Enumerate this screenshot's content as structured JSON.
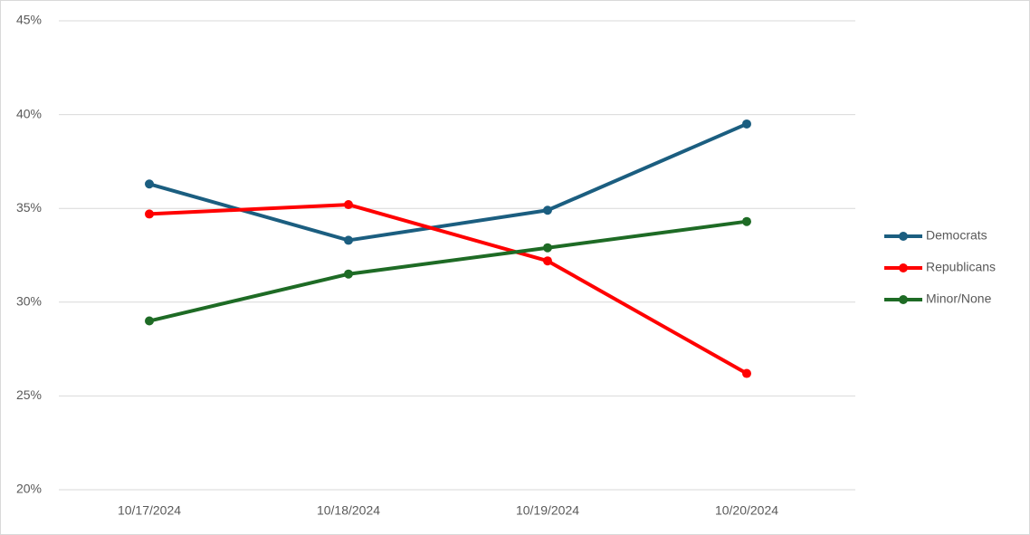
{
  "chart_data": {
    "type": "line",
    "categories": [
      "10/17/2024",
      "10/18/2024",
      "10/19/2024",
      "10/20/2024"
    ],
    "series": [
      {
        "name": "Democrats",
        "color": "#1b5e80",
        "values": [
          36.3,
          33.3,
          34.9,
          39.5
        ]
      },
      {
        "name": "Republicans",
        "color": "#ff0000",
        "values": [
          34.7,
          35.2,
          32.2,
          26.2
        ]
      },
      {
        "name": "Minor/None",
        "color": "#1e6b25",
        "values": [
          29.0,
          31.5,
          32.9,
          34.3
        ]
      }
    ],
    "ylim": [
      20,
      45
    ],
    "yticks": [
      {
        "value": 20,
        "label": "20%"
      },
      {
        "value": 25,
        "label": "25%"
      },
      {
        "value": 30,
        "label": "30%"
      },
      {
        "value": 35,
        "label": "35%"
      },
      {
        "value": 40,
        "label": "40%"
      },
      {
        "value": 45,
        "label": "45%"
      }
    ],
    "grid": true,
    "legend": "right"
  }
}
